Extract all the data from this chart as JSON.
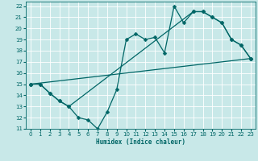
{
  "xlabel": "Humidex (Indice chaleur)",
  "bg_color": "#c8e8e8",
  "grid_color": "#ffffff",
  "line_color": "#006666",
  "xlim": [
    -0.5,
    23.5
  ],
  "ylim": [
    11,
    22.4
  ],
  "yticks": [
    11,
    12,
    13,
    14,
    15,
    16,
    17,
    18,
    19,
    20,
    21,
    22
  ],
  "xticks": [
    0,
    1,
    2,
    3,
    4,
    5,
    6,
    7,
    8,
    9,
    10,
    11,
    12,
    13,
    14,
    15,
    16,
    17,
    18,
    19,
    20,
    21,
    22,
    23
  ],
  "line1_x": [
    0,
    1,
    2,
    3,
    4,
    5,
    6,
    7,
    8,
    9,
    10,
    11,
    12,
    13,
    14,
    15,
    16,
    17,
    18,
    19,
    20,
    21,
    22,
    23
  ],
  "line1_y": [
    15,
    15,
    14.2,
    13.5,
    13.0,
    12.0,
    11.8,
    11.0,
    12.5,
    14.5,
    19.0,
    19.5,
    19.0,
    19.2,
    17.8,
    22.0,
    20.5,
    21.5,
    21.5,
    21.0,
    20.5,
    19.0,
    18.5,
    17.3
  ],
  "line2_x": [
    0,
    1,
    2,
    3,
    4,
    17,
    18,
    19,
    20,
    21,
    22,
    23
  ],
  "line2_y": [
    15,
    15,
    14.2,
    13.5,
    13.0,
    21.5,
    21.5,
    21.0,
    20.5,
    19.0,
    18.5,
    17.3
  ],
  "line3_x": [
    0,
    23
  ],
  "line3_y": [
    15.0,
    17.3
  ],
  "markersize": 2.5,
  "linewidth": 0.9,
  "xlabel_fontsize": 5.5,
  "tick_fontsize": 5
}
